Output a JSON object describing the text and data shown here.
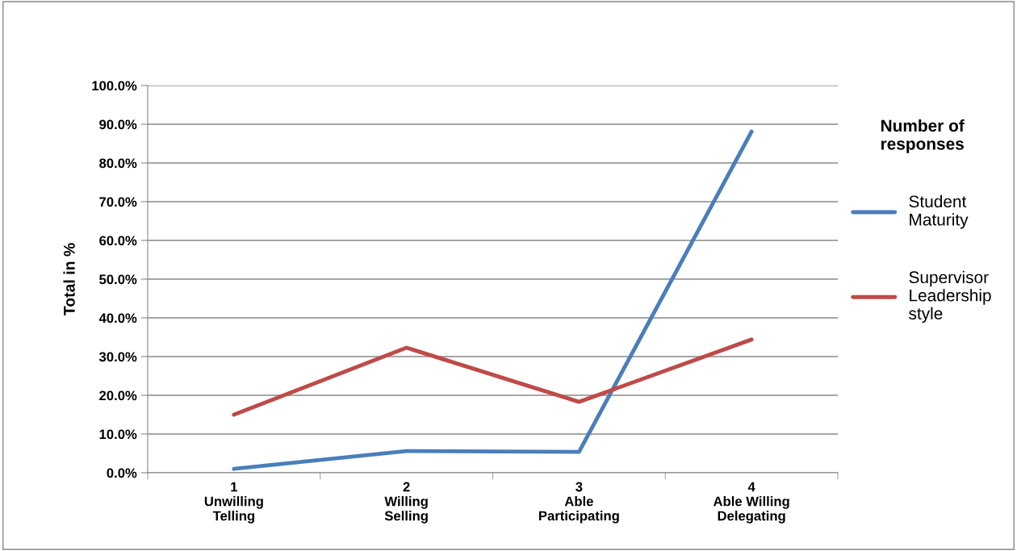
{
  "chart_data": {
    "type": "line",
    "ylabel": "Total in %",
    "legend_title": "Number of\nresponses",
    "categories": [
      "1\nUnwilling\nTelling",
      "2\nWilling\nSelling",
      "3\nAble\nParticipating",
      "4\nAble Willing\nDelegating"
    ],
    "series": [
      {
        "name": "Student\nMaturity",
        "color": "#4a7ebb",
        "values": [
          1.0,
          5.6,
          5.4,
          88.1
        ]
      },
      {
        "name": "Supervisor\nLeadership\nstyle",
        "color": "#be4b48",
        "values": [
          15.0,
          32.3,
          18.3,
          34.4
        ]
      }
    ],
    "ylim": [
      0,
      100
    ],
    "yticks": [
      {
        "value": 0,
        "label": "0.0%"
      },
      {
        "value": 10,
        "label": "10.0%"
      },
      {
        "value": 20,
        "label": "20.0%"
      },
      {
        "value": 30,
        "label": "30.0%"
      },
      {
        "value": 40,
        "label": "40.0%"
      },
      {
        "value": 50,
        "label": "50.0%"
      },
      {
        "value": 60,
        "label": "60.0%"
      },
      {
        "value": 70,
        "label": "70.0%"
      },
      {
        "value": 80,
        "label": "80.0%"
      },
      {
        "value": 90,
        "label": "90.0%"
      },
      {
        "value": 100,
        "label": "100.0%"
      }
    ],
    "grid": "y",
    "legend": "right",
    "marker": "none",
    "line_style": "solid"
  }
}
